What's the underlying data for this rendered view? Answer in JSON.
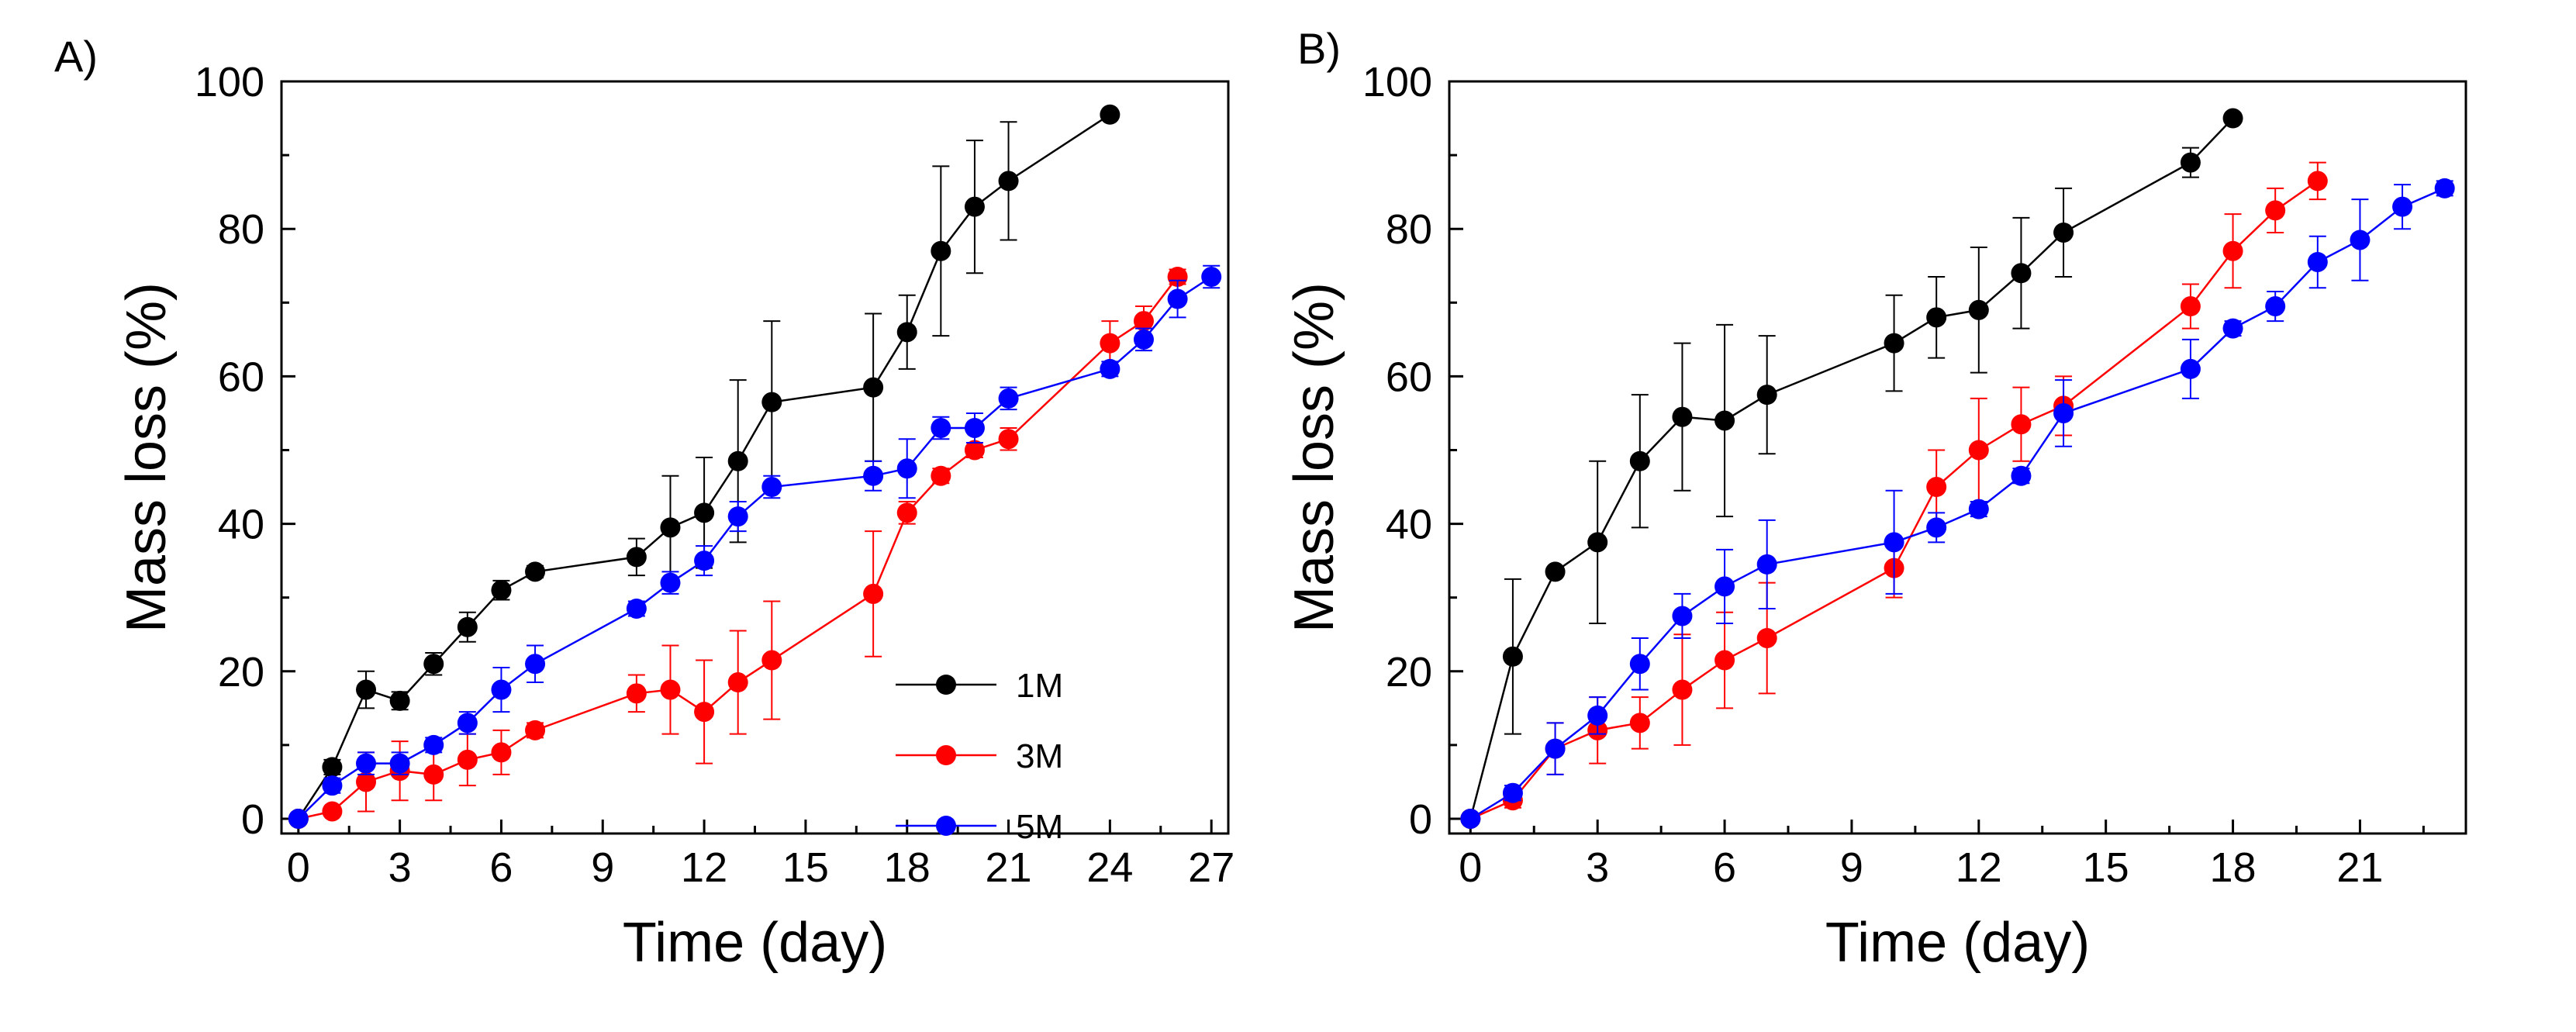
{
  "figure": {
    "panel_labels": [
      "A)",
      "B)"
    ]
  },
  "chart_data": [
    {
      "type": "line",
      "panel": "A)",
      "title": "",
      "xlabel": "Time (day)",
      "ylabel": "Mass loss (%)",
      "xlim": [
        -0.5,
        27.5
      ],
      "ylim": [
        -2,
        100
      ],
      "xticks": [
        0,
        3,
        6,
        9,
        12,
        15,
        18,
        21,
        24,
        27
      ],
      "yticks": [
        0,
        20,
        40,
        60,
        80,
        100
      ],
      "grid": false,
      "legend": {
        "position": "bottom-right",
        "entries": [
          "1M",
          "3M",
          "5M"
        ]
      },
      "series": [
        {
          "name": "1M",
          "color": "#000000",
          "x": [
            0,
            1,
            2,
            3,
            4,
            5,
            6,
            7,
            10,
            11,
            12,
            13,
            14,
            17,
            18,
            19,
            20,
            21,
            24
          ],
          "y": [
            0,
            7,
            17.5,
            16,
            21,
            26,
            31,
            33.5,
            35.5,
            39.5,
            41.5,
            48.5,
            56.5,
            58.5,
            66,
            77,
            83,
            86.5,
            95.5
          ],
          "err": [
            0,
            1,
            2.5,
            1.2,
            1.5,
            2,
            1.3,
            0.8,
            2.5,
            7,
            7.5,
            11,
            11,
            10,
            5,
            11.5,
            9,
            8,
            0
          ]
        },
        {
          "name": "3M",
          "color": "#ff0000",
          "x": [
            0,
            1,
            2,
            3,
            4,
            5,
            6,
            7,
            10,
            11,
            12,
            13,
            14,
            17,
            18,
            19,
            20,
            21,
            24,
            25,
            26
          ],
          "y": [
            0,
            1,
            5,
            6.5,
            6,
            8,
            9,
            12,
            17,
            17.5,
            14.5,
            18.5,
            21.5,
            30.5,
            41.5,
            46.5,
            50,
            51.5,
            64.5,
            67.5,
            73.5
          ],
          "err": [
            0,
            0.5,
            4,
            4,
            3.5,
            3.5,
            3,
            1,
            2.5,
            6,
            7,
            7,
            8,
            8.5,
            1.5,
            1,
            1,
            1.5,
            3,
            2,
            1
          ]
        },
        {
          "name": "5M",
          "color": "#0000ff",
          "x": [
            0,
            1,
            2,
            3,
            4,
            5,
            6,
            7,
            10,
            11,
            12,
            13,
            14,
            17,
            18,
            19,
            20,
            21,
            24,
            25,
            26,
            27
          ],
          "y": [
            0,
            4.5,
            7.5,
            7.5,
            10,
            13,
            17.5,
            21,
            28.5,
            32,
            35,
            41,
            45,
            46.5,
            47.5,
            53,
            53,
            57,
            61,
            65,
            70.5,
            73.5
          ],
          "err": [
            0,
            1,
            1.5,
            1.5,
            1,
            1.5,
            3,
            2.5,
            1,
            1.5,
            2,
            2,
            1.5,
            2,
            4,
            1.5,
            2,
            1.5,
            1,
            1.5,
            2.5,
            1.5
          ]
        }
      ]
    },
    {
      "type": "line",
      "panel": "B)",
      "title": "",
      "xlabel": "Time (day)",
      "ylabel": "Mass loss (%)",
      "xlim": [
        -0.5,
        23.5
      ],
      "ylim": [
        -2,
        100
      ],
      "xticks": [
        0,
        3,
        6,
        9,
        12,
        15,
        18,
        21
      ],
      "yticks": [
        0,
        20,
        40,
        60,
        80,
        100
      ],
      "grid": false,
      "legend": null,
      "series": [
        {
          "name": "1M",
          "color": "#000000",
          "x": [
            0,
            1,
            2,
            3,
            4,
            5,
            6,
            7,
            10,
            11,
            12,
            13,
            14,
            17,
            18
          ],
          "y": [
            0,
            22,
            33.5,
            37.5,
            48.5,
            54.5,
            54,
            57.5,
            64.5,
            68,
            69,
            74,
            79.5,
            89,
            95
          ],
          "err": [
            0,
            10.5,
            0.5,
            11,
            9,
            10,
            13,
            8,
            6.5,
            5.5,
            8.5,
            7.5,
            6,
            2,
            0
          ]
        },
        {
          "name": "3M",
          "color": "#ff0000",
          "x": [
            0,
            1,
            2,
            3,
            4,
            5,
            6,
            7,
            10,
            11,
            12,
            13,
            14,
            17,
            18,
            19,
            20
          ],
          "y": [
            0,
            2.5,
            9.5,
            12,
            13,
            17.5,
            21.5,
            24.5,
            34,
            45,
            50,
            53.5,
            56,
            69.5,
            77,
            82.5,
            86.5
          ],
          "err": [
            0,
            1,
            3.5,
            4.5,
            3.5,
            7.5,
            6.5,
            7.5,
            4,
            5,
            7,
            5,
            4,
            3,
            5,
            3,
            2.5
          ]
        },
        {
          "name": "5M",
          "color": "#0000ff",
          "x": [
            0,
            1,
            2,
            3,
            4,
            5,
            6,
            7,
            10,
            11,
            12,
            13,
            14,
            17,
            18,
            19,
            20,
            21,
            22,
            23
          ],
          "y": [
            0,
            3.5,
            9.5,
            14,
            21,
            27.5,
            31.5,
            34.5,
            37.5,
            39.5,
            42,
            46.5,
            55,
            61,
            66.5,
            69.5,
            75.5,
            78.5,
            83,
            85.5
          ],
          "err": [
            0,
            1,
            3.5,
            2.5,
            3.5,
            3,
            5,
            6,
            7,
            2,
            1,
            1,
            4.5,
            4,
            1,
            2,
            3.5,
            5.5,
            3,
            1
          ]
        }
      ]
    }
  ]
}
